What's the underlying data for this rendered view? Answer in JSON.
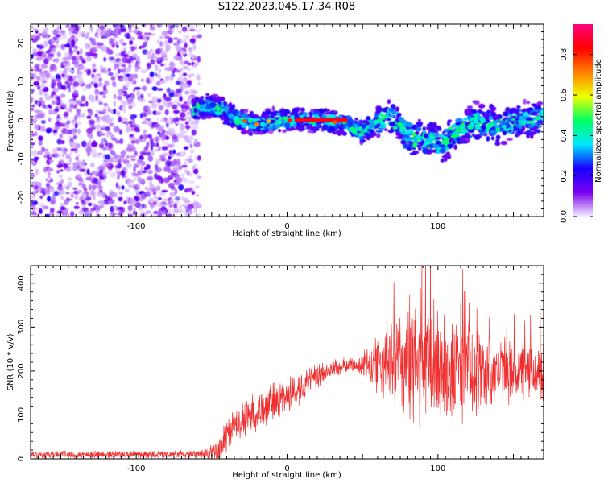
{
  "title": "S122.2023.045.17.34.R08",
  "chart_data": [
    {
      "type": "heatmap",
      "xlabel": "Height of straight line (km)",
      "ylabel": "Frequency (Hz)",
      "xlim": [
        -170,
        170
      ],
      "ylim": [
        -25,
        25
      ],
      "xticks": [
        -100,
        0,
        100
      ],
      "yticks": [
        -20,
        -10,
        0,
        10,
        20
      ],
      "colorbar": {
        "label": "Normalized spectral amplitude",
        "range": [
          0,
          0.95
        ],
        "ticks": [
          0.0,
          0.2,
          0.4,
          0.6,
          0.8
        ],
        "colors": [
          "#f4f0ff",
          "#7a00f0",
          "#1800ff",
          "#00e8ff",
          "#00ff60",
          "#f0ff00",
          "#ff8000",
          "#ff0000",
          "#ff0080"
        ]
      },
      "noise_region_x": [
        -170,
        -62
      ],
      "signal_ridge": [
        {
          "x": -62,
          "y": 3
        },
        {
          "x": -50,
          "y": 4
        },
        {
          "x": -40,
          "y": 2
        },
        {
          "x": -30,
          "y": 0
        },
        {
          "x": -20,
          "y": -1
        },
        {
          "x": -10,
          "y": 0
        },
        {
          "x": 0,
          "y": 0
        },
        {
          "x": 10,
          "y": 0
        },
        {
          "x": 25,
          "y": 0
        },
        {
          "x": 40,
          "y": -1
        },
        {
          "x": 50,
          "y": -3
        },
        {
          "x": 60,
          "y": 0
        },
        {
          "x": 70,
          "y": 1
        },
        {
          "x": 80,
          "y": -4
        },
        {
          "x": 95,
          "y": -5
        },
        {
          "x": 105,
          "y": -6
        },
        {
          "x": 115,
          "y": -2
        },
        {
          "x": 125,
          "y": 0
        },
        {
          "x": 140,
          "y": -2
        },
        {
          "x": 155,
          "y": 0
        },
        {
          "x": 170,
          "y": 1
        }
      ],
      "peak_band": {
        "x": [
          5,
          40
        ],
        "y": 0,
        "amplitude": 0.9
      }
    },
    {
      "type": "line",
      "xlabel": "Height of straight line (km)",
      "ylabel": "SNR (10 * v/v)",
      "xlim": [
        -170,
        170
      ],
      "ylim": [
        0,
        440
      ],
      "xticks": [
        -100,
        0,
        100
      ],
      "yticks": [
        0,
        100,
        200,
        300,
        400
      ],
      "line_color": "#f03030",
      "series": [
        {
          "envelope_x": [
            -170,
            -100,
            -60,
            -45,
            -42,
            -35,
            -20,
            0,
            20,
            30,
            45,
            55,
            65,
            80,
            100,
            120,
            140,
            160,
            170
          ],
          "mean": [
            10,
            10,
            10,
            15,
            45,
            75,
            110,
            145,
            185,
            205,
            215,
            210,
            220,
            215,
            210,
            200,
            200,
            195,
            195
          ],
          "amplitude": [
            8,
            8,
            8,
            25,
            40,
            35,
            45,
            40,
            30,
            20,
            15,
            45,
            80,
            140,
            130,
            110,
            70,
            60,
            70
          ]
        }
      ]
    }
  ]
}
